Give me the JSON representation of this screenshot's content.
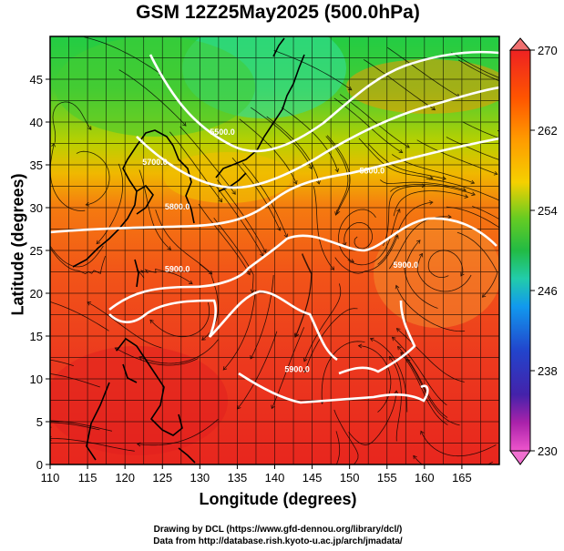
{
  "title": "GSM 12Z25May2025 (500.0hPa)",
  "xlabel": "Longitude (degrees)",
  "ylabel": "Latitude  (degrees)",
  "credits": [
    "Drawing by DCL (https://www.gfd-dennou.org/library/dcl/)",
    "Data from http://database.rish.kyoto-u.ac.jp/arch/jmadata/"
  ],
  "map": {
    "lon_range": [
      110,
      170
    ],
    "lat_range": [
      0,
      50
    ],
    "lon_ticks": [
      "110",
      "115",
      "120",
      "125",
      "130",
      "135",
      "140",
      "145",
      "150",
      "155",
      "160",
      "165"
    ],
    "lat_ticks": [
      "0",
      "5",
      "10",
      "15",
      "20",
      "25",
      "30",
      "35",
      "40",
      "45"
    ],
    "contour_labels": [
      {
        "text": "5500.0",
        "lon": 133,
        "lat": 38.5
      },
      {
        "text": "5700.0",
        "lon": 124,
        "lat": 35
      },
      {
        "text": "5800.0",
        "lon": 127,
        "lat": 29.8
      },
      {
        "text": "5800.0",
        "lon": 153,
        "lat": 34
      },
      {
        "text": "5900.0",
        "lon": 127,
        "lat": 22.5
      },
      {
        "text": "5900.0",
        "lon": 157.5,
        "lat": 23
      },
      {
        "text": "5900.0",
        "lon": 143,
        "lat": 10.8
      }
    ]
  },
  "colorbar": {
    "labels": [
      "270",
      "262",
      "254",
      "246",
      "238",
      "230"
    ],
    "colors": [
      "#ee2222",
      "#ff7700",
      "#f5d000",
      "#33bb33",
      "#22ccaa",
      "#1188ee",
      "#2233cc",
      "#552299",
      "#cc22aa",
      "#ee55cc"
    ]
  }
}
